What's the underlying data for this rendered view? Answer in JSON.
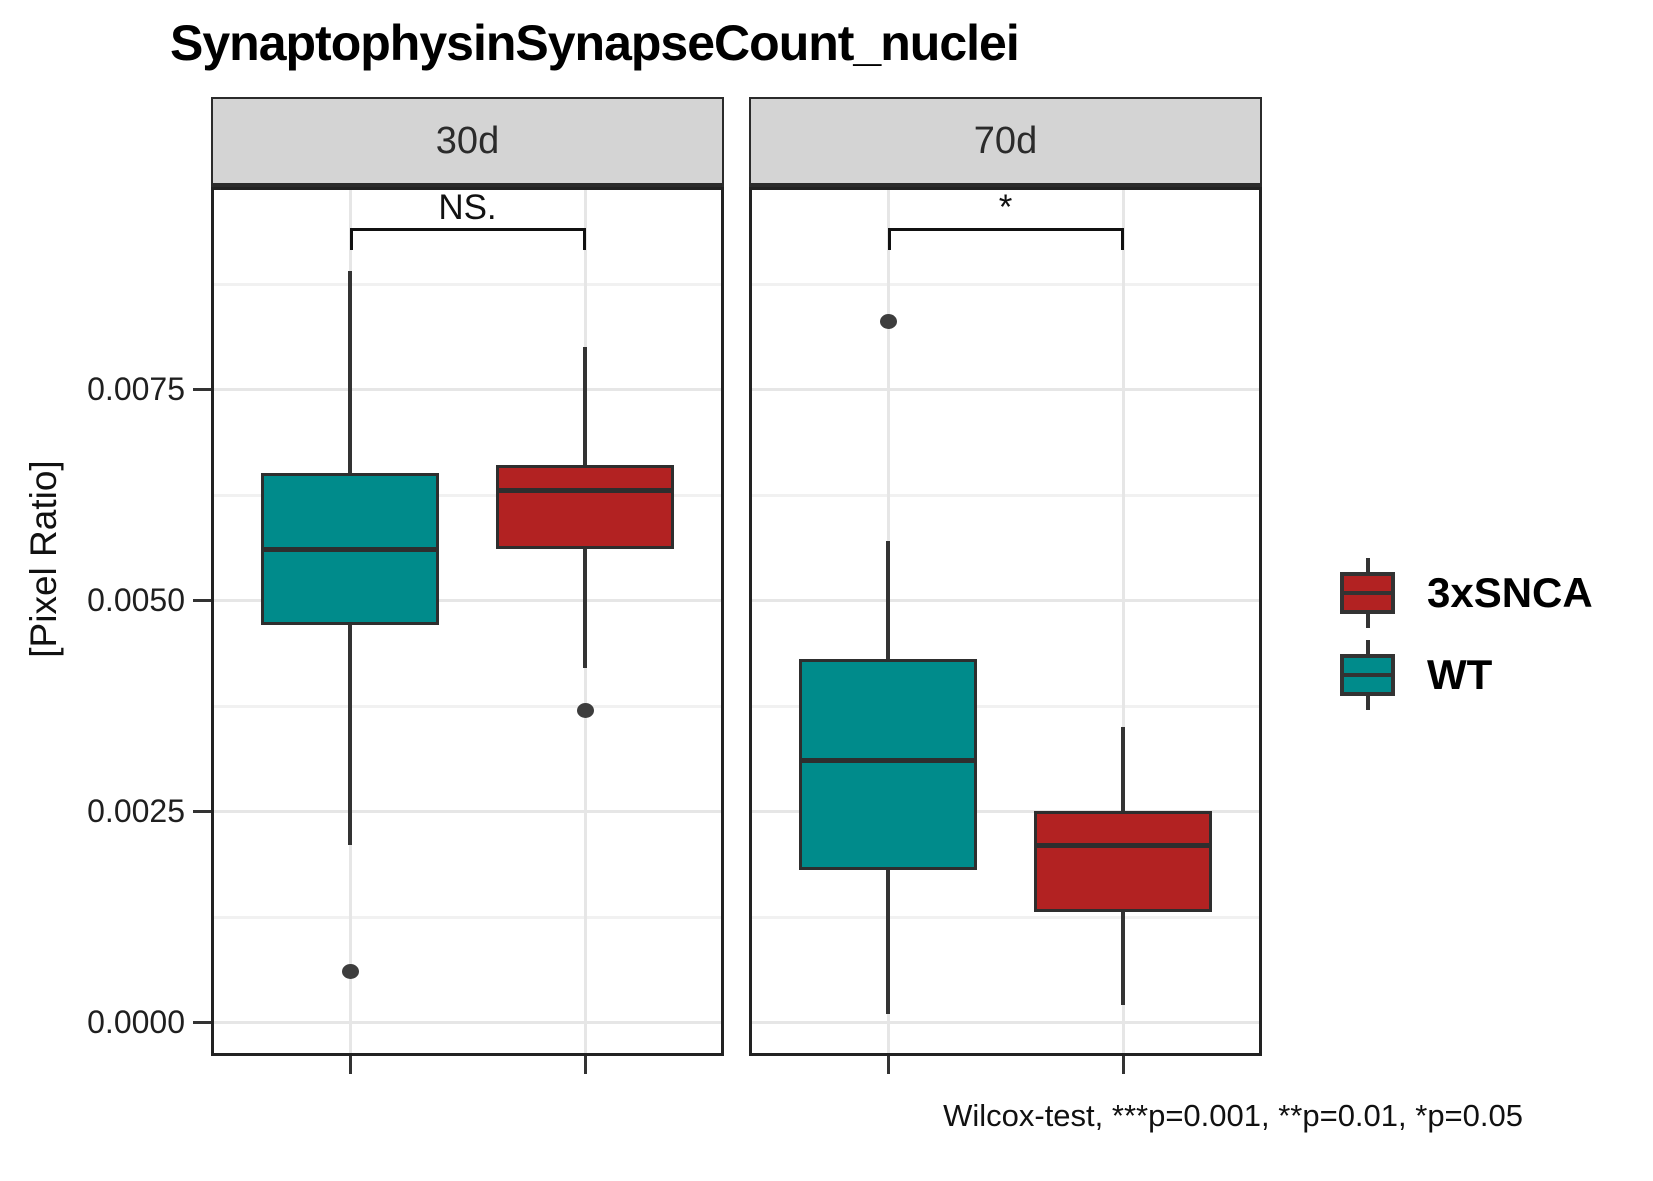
{
  "chart": {
    "title": "SynaptophysinSynapseCount_nuclei",
    "ylabel": "[Pixel Ratio]",
    "caption": "Wilcox-test, ***p=0.001, **p=0.01, *p=0.05"
  },
  "chart_data": {
    "type": "boxplot",
    "title": "SynaptophysinSynapseCount_nuclei",
    "ylabel": "[Pixel Ratio]",
    "xlabel": "",
    "caption": "Wilcox-test, ***p=0.001, **p=0.01, *p=0.05",
    "grid": true,
    "legend_position": "right",
    "ylim": [
      -0.0004,
      0.0099
    ],
    "y_ticks": [
      0.0,
      0.0025,
      0.005,
      0.0075
    ],
    "y_tick_labels": [
      "0.0000",
      "0.0025",
      "0.0050",
      "0.0075"
    ],
    "y_minor_ticks": [
      0.00125,
      0.00375,
      0.00625,
      0.00875
    ],
    "facets": [
      {
        "label": "30d",
        "significance": "NS.",
        "boxes": [
          {
            "group": "WT",
            "color": "#008b8b",
            "whisker_low": 0.0021,
            "q1": 0.0047,
            "median": 0.0056,
            "q3": 0.0065,
            "whisker_high": 0.0089,
            "outliers": [
              0.0006
            ]
          },
          {
            "group": "3xSNCA",
            "color": "#b22222",
            "whisker_low": 0.0042,
            "q1": 0.0056,
            "median": 0.0063,
            "q3": 0.0066,
            "whisker_high": 0.008,
            "outliers": [
              0.0037
            ]
          }
        ]
      },
      {
        "label": "70d",
        "significance": "*",
        "boxes": [
          {
            "group": "WT",
            "color": "#008b8b",
            "whisker_low": 0.0001,
            "q1": 0.0018,
            "median": 0.0031,
            "q3": 0.0043,
            "whisker_high": 0.0057,
            "outliers": [
              0.0083
            ]
          },
          {
            "group": "3xSNCA",
            "color": "#b22222",
            "whisker_low": 0.0002,
            "q1": 0.0013,
            "median": 0.0021,
            "q3": 0.0025,
            "whisker_high": 0.0035,
            "outliers": []
          }
        ]
      }
    ],
    "legend": [
      {
        "label": "3xSNCA",
        "color": "#b22222"
      },
      {
        "label": "WT",
        "color": "#008b8b"
      }
    ],
    "colors": {
      "wt": "#008b8b",
      "snca": "#b22222",
      "line": "#333333",
      "strip_fill": "#d4d4d4",
      "grid_major": "#e6e6e6",
      "grid_minor": "#f1f1f1"
    }
  }
}
